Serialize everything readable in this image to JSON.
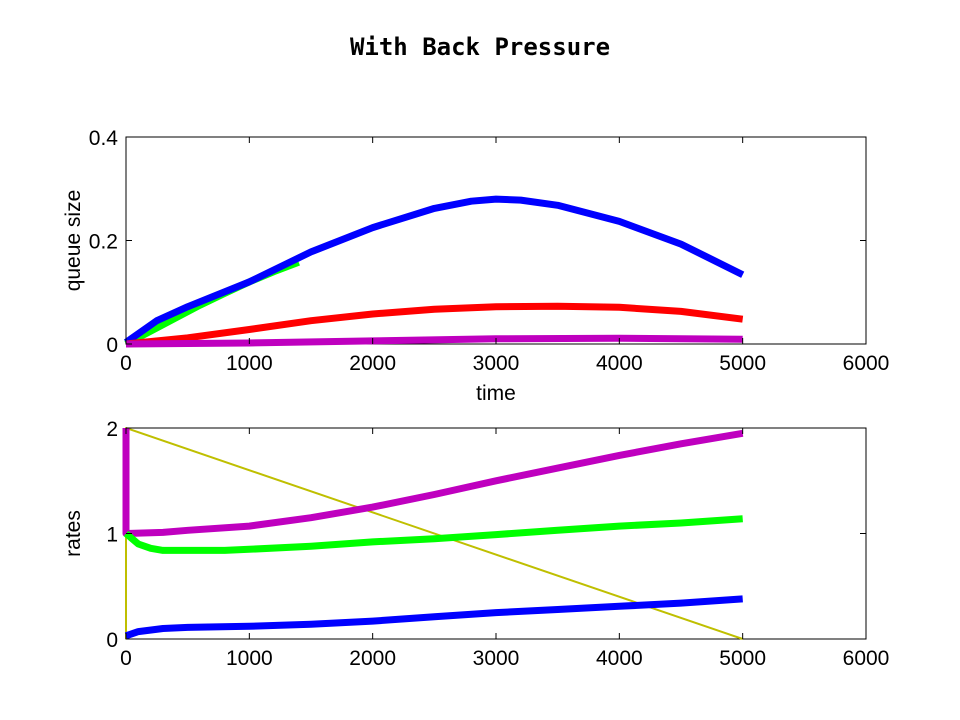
{
  "figure_title": "With Back Pressure",
  "colors": {
    "blue": "#0000ff",
    "green": "#00ff00",
    "red": "#ff0000",
    "magenta": "#bf00bf",
    "yellow": "#bfbf00"
  },
  "chart_data": [
    {
      "type": "line",
      "title": "With Back Pressure",
      "xlabel": "time",
      "ylabel": "queue size",
      "xlim": [
        0,
        6000
      ],
      "ylim": [
        0,
        0.4
      ],
      "xticks": [
        "0",
        "1000",
        "2000",
        "3000",
        "4000",
        "5000",
        "6000"
      ],
      "yticks": [
        "0",
        "0.2",
        "0.4"
      ],
      "grid": false,
      "series": [
        {
          "color": "#00ff00",
          "x": [
            0,
            200,
            400,
            600,
            800,
            1000,
            1200,
            1400
          ],
          "y": [
            0,
            0.025,
            0.05,
            0.075,
            0.098,
            0.12,
            0.14,
            0.158
          ]
        },
        {
          "color": "#0000ff",
          "x": [
            0,
            250,
            500,
            1000,
            1500,
            2000,
            2500,
            2800,
            3000,
            3200,
            3500,
            4000,
            4500,
            5000
          ],
          "y": [
            0.003,
            0.045,
            0.072,
            0.12,
            0.178,
            0.225,
            0.262,
            0.276,
            0.28,
            0.278,
            0.268,
            0.237,
            0.193,
            0.134
          ]
        },
        {
          "color": "#ff0000",
          "x": [
            0,
            500,
            1000,
            1500,
            2000,
            2500,
            3000,
            3500,
            4000,
            4500,
            5000
          ],
          "y": [
            0,
            0.012,
            0.028,
            0.045,
            0.058,
            0.067,
            0.072,
            0.073,
            0.071,
            0.063,
            0.048
          ]
        },
        {
          "color": "#bf00bf",
          "x": [
            0,
            1000,
            2000,
            3000,
            4000,
            5000
          ],
          "y": [
            0,
            0.002,
            0.006,
            0.01,
            0.011,
            0.009
          ]
        }
      ]
    },
    {
      "type": "line",
      "xlabel": "",
      "ylabel": "rates",
      "xlim": [
        0,
        6000
      ],
      "ylim": [
        0,
        2
      ],
      "xticks": [
        "0",
        "1000",
        "2000",
        "3000",
        "4000",
        "5000",
        "6000"
      ],
      "yticks": [
        "0",
        "1",
        "2"
      ],
      "grid": false,
      "series": [
        {
          "color": "#bfbf00",
          "x": [
            0,
            0,
            5000
          ],
          "y": [
            0,
            2,
            0
          ]
        },
        {
          "color": "#bf00bf",
          "x": [
            0,
            0,
            1,
            300,
            500,
            1000,
            1500,
            2000,
            2500,
            3000,
            3500,
            4000,
            4500,
            5000
          ],
          "y": [
            2,
            1.0,
            1.0,
            1.01,
            1.03,
            1.07,
            1.15,
            1.25,
            1.37,
            1.5,
            1.62,
            1.74,
            1.85,
            1.95
          ]
        },
        {
          "color": "#00ff00",
          "x": [
            0,
            100,
            200,
            300,
            500,
            800,
            1000,
            1500,
            2000,
            2500,
            3000,
            3500,
            4000,
            4500,
            5000
          ],
          "y": [
            1.0,
            0.9,
            0.86,
            0.84,
            0.84,
            0.84,
            0.85,
            0.88,
            0.92,
            0.95,
            0.99,
            1.03,
            1.07,
            1.1,
            1.14
          ]
        },
        {
          "color": "#0000ff",
          "x": [
            0,
            100,
            300,
            500,
            1000,
            1500,
            2000,
            2500,
            3000,
            3500,
            4000,
            4500,
            5000
          ],
          "y": [
            0.03,
            0.07,
            0.1,
            0.11,
            0.12,
            0.14,
            0.17,
            0.21,
            0.25,
            0.28,
            0.31,
            0.34,
            0.38
          ]
        }
      ]
    }
  ]
}
